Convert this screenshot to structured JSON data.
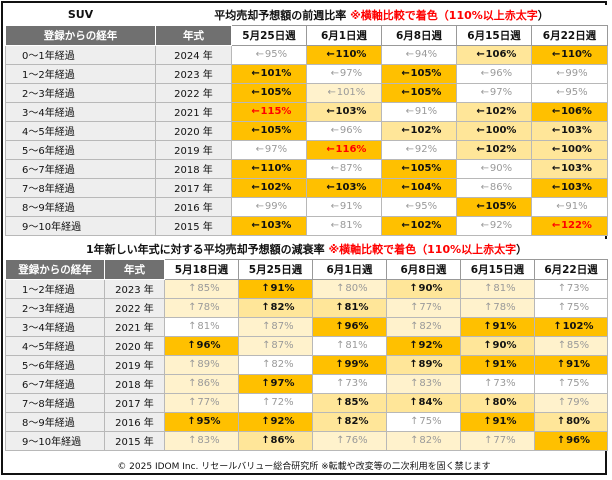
{
  "table1": {
    "corner_label": "SUV",
    "title": "平均売却予想額の前週比率",
    "note_black": "※横軸比較で着色（110%以上",
    "note_red": "赤太字",
    "note_close": "）",
    "row_header": "登録からの経年",
    "year_header": "年式",
    "dates": [
      "5月25日週",
      "6月1日週",
      "6月8日週",
      "6月15日週",
      "6月22日週"
    ],
    "rows": [
      {
        "label": "0～1年経過",
        "year": "2024 年",
        "cells": [
          {
            "arrow": "←",
            "value": "95%",
            "level": "white",
            "red": false
          },
          {
            "arrow": "←",
            "value": "110%",
            "level": "top",
            "red": false
          },
          {
            "arrow": "←",
            "value": "94%",
            "level": "white",
            "red": false
          },
          {
            "arrow": "←",
            "value": "106%",
            "level": "mid",
            "red": false
          },
          {
            "arrow": "←",
            "value": "110%",
            "level": "top",
            "red": false
          }
        ]
      },
      {
        "label": "1～2年経過",
        "year": "2023 年",
        "cells": [
          {
            "arrow": "←",
            "value": "101%",
            "level": "top",
            "red": false
          },
          {
            "arrow": "←",
            "value": "97%",
            "level": "white",
            "red": false
          },
          {
            "arrow": "←",
            "value": "105%",
            "level": "top",
            "red": false
          },
          {
            "arrow": "←",
            "value": "96%",
            "level": "white",
            "red": false
          },
          {
            "arrow": "←",
            "value": "99%",
            "level": "white",
            "red": false
          }
        ]
      },
      {
        "label": "2～3年経過",
        "year": "2022 年",
        "cells": [
          {
            "arrow": "←",
            "value": "105%",
            "level": "top",
            "red": false
          },
          {
            "arrow": "←",
            "value": "101%",
            "level": "low",
            "red": false
          },
          {
            "arrow": "←",
            "value": "105%",
            "level": "top",
            "red": false
          },
          {
            "arrow": "←",
            "value": "97%",
            "level": "white",
            "red": false
          },
          {
            "arrow": "←",
            "value": "95%",
            "level": "white",
            "red": false
          }
        ]
      },
      {
        "label": "3～4年経過",
        "year": "2021 年",
        "cells": [
          {
            "arrow": "←",
            "value": "115%",
            "level": "top",
            "red": true
          },
          {
            "arrow": "←",
            "value": "103%",
            "level": "mid",
            "red": false
          },
          {
            "arrow": "←",
            "value": "91%",
            "level": "white",
            "red": false
          },
          {
            "arrow": "←",
            "value": "102%",
            "level": "mid",
            "red": false
          },
          {
            "arrow": "←",
            "value": "106%",
            "level": "top",
            "red": false
          }
        ]
      },
      {
        "label": "4～5年経過",
        "year": "2020 年",
        "cells": [
          {
            "arrow": "←",
            "value": "105%",
            "level": "top",
            "red": false
          },
          {
            "arrow": "←",
            "value": "96%",
            "level": "white",
            "red": false
          },
          {
            "arrow": "←",
            "value": "102%",
            "level": "mid",
            "red": false
          },
          {
            "arrow": "←",
            "value": "100%",
            "level": "mid",
            "red": false
          },
          {
            "arrow": "←",
            "value": "103%",
            "level": "mid",
            "red": false
          }
        ]
      },
      {
        "label": "5～6年経過",
        "year": "2019 年",
        "cells": [
          {
            "arrow": "←",
            "value": "97%",
            "level": "white",
            "red": false
          },
          {
            "arrow": "←",
            "value": "116%",
            "level": "top",
            "red": true
          },
          {
            "arrow": "←",
            "value": "92%",
            "level": "white",
            "red": false
          },
          {
            "arrow": "←",
            "value": "102%",
            "level": "mid",
            "red": false
          },
          {
            "arrow": "←",
            "value": "100%",
            "level": "mid",
            "red": false
          }
        ]
      },
      {
        "label": "6～7年経過",
        "year": "2018 年",
        "cells": [
          {
            "arrow": "←",
            "value": "110%",
            "level": "top",
            "red": false
          },
          {
            "arrow": "←",
            "value": "87%",
            "level": "white",
            "red": false
          },
          {
            "arrow": "←",
            "value": "105%",
            "level": "top",
            "red": false
          },
          {
            "arrow": "←",
            "value": "90%",
            "level": "white",
            "red": false
          },
          {
            "arrow": "←",
            "value": "103%",
            "level": "mid",
            "red": false
          }
        ]
      },
      {
        "label": "7～8年経過",
        "year": "2017 年",
        "cells": [
          {
            "arrow": "←",
            "value": "102%",
            "level": "top",
            "red": false
          },
          {
            "arrow": "←",
            "value": "103%",
            "level": "top",
            "red": false
          },
          {
            "arrow": "←",
            "value": "104%",
            "level": "top",
            "red": false
          },
          {
            "arrow": "←",
            "value": "86%",
            "level": "white",
            "red": false
          },
          {
            "arrow": "←",
            "value": "103%",
            "level": "top",
            "red": false
          }
        ]
      },
      {
        "label": "8～9年経過",
        "year": "2016 年",
        "cells": [
          {
            "arrow": "←",
            "value": "99%",
            "level": "white",
            "red": false
          },
          {
            "arrow": "←",
            "value": "91%",
            "level": "white",
            "red": false
          },
          {
            "arrow": "←",
            "value": "95%",
            "level": "white",
            "red": false
          },
          {
            "arrow": "←",
            "value": "105%",
            "level": "top",
            "red": false
          },
          {
            "arrow": "←",
            "value": "91%",
            "level": "white",
            "red": false
          }
        ]
      },
      {
        "label": "9～10年経過",
        "year": "2015 年",
        "cells": [
          {
            "arrow": "←",
            "value": "103%",
            "level": "top",
            "red": false
          },
          {
            "arrow": "←",
            "value": "81%",
            "level": "white",
            "red": false
          },
          {
            "arrow": "←",
            "value": "102%",
            "level": "top",
            "red": false
          },
          {
            "arrow": "←",
            "value": "92%",
            "level": "white",
            "red": false
          },
          {
            "arrow": "←",
            "value": "122%",
            "level": "top",
            "red": true
          }
        ]
      }
    ]
  },
  "table2": {
    "title": "1年新しい年式に対する平均売却予想額の減衰率",
    "note_black": "※横軸比較で着色（110%以上",
    "note_red": "赤太字",
    "note_close": "）",
    "row_header": "登録からの経年",
    "year_header": "年式",
    "dates": [
      "5月18日週",
      "5月25日週",
      "6月1日週",
      "6月8日週",
      "6月15日週",
      "6月22日週"
    ],
    "rows": [
      {
        "label": "1～2年経過",
        "year": "2023 年",
        "cells": [
          {
            "arrow": "↑",
            "value": "85%",
            "level": "low",
            "red": false
          },
          {
            "arrow": "↑",
            "value": "91%",
            "level": "top",
            "red": false
          },
          {
            "arrow": "↑",
            "value": "80%",
            "level": "low",
            "red": false
          },
          {
            "arrow": "↑",
            "value": "90%",
            "level": "mid",
            "red": false
          },
          {
            "arrow": "↑",
            "value": "81%",
            "level": "low",
            "red": false
          },
          {
            "arrow": "↑",
            "value": "73%",
            "level": "white",
            "red": false
          }
        ]
      },
      {
        "label": "2～3年経過",
        "year": "2022 年",
        "cells": [
          {
            "arrow": "↑",
            "value": "78%",
            "level": "low",
            "red": false
          },
          {
            "arrow": "↑",
            "value": "82%",
            "level": "mid",
            "red": false
          },
          {
            "arrow": "↑",
            "value": "81%",
            "level": "mid",
            "red": false
          },
          {
            "arrow": "↑",
            "value": "77%",
            "level": "low",
            "red": false
          },
          {
            "arrow": "↑",
            "value": "78%",
            "level": "low",
            "red": false
          },
          {
            "arrow": "↑",
            "value": "75%",
            "level": "white",
            "red": false
          }
        ]
      },
      {
        "label": "3～4年経過",
        "year": "2021 年",
        "cells": [
          {
            "arrow": "↑",
            "value": "81%",
            "level": "white",
            "red": false
          },
          {
            "arrow": "↑",
            "value": "87%",
            "level": "low",
            "red": false
          },
          {
            "arrow": "↑",
            "value": "96%",
            "level": "top",
            "red": false
          },
          {
            "arrow": "↑",
            "value": "82%",
            "level": "low",
            "red": false
          },
          {
            "arrow": "↑",
            "value": "91%",
            "level": "top",
            "red": false
          },
          {
            "arrow": "↑",
            "value": "102%",
            "level": "top",
            "red": false
          }
        ]
      },
      {
        "label": "4～5年経過",
        "year": "2020 年",
        "cells": [
          {
            "arrow": "↑",
            "value": "96%",
            "level": "top",
            "red": false
          },
          {
            "arrow": "↑",
            "value": "87%",
            "level": "low",
            "red": false
          },
          {
            "arrow": "↑",
            "value": "81%",
            "level": "white",
            "red": false
          },
          {
            "arrow": "↑",
            "value": "92%",
            "level": "top",
            "red": false
          },
          {
            "arrow": "↑",
            "value": "90%",
            "level": "mid",
            "red": false
          },
          {
            "arrow": "↑",
            "value": "85%",
            "level": "low",
            "red": false
          }
        ]
      },
      {
        "label": "5～6年経過",
        "year": "2019 年",
        "cells": [
          {
            "arrow": "↑",
            "value": "89%",
            "level": "low",
            "red": false
          },
          {
            "arrow": "↑",
            "value": "82%",
            "level": "white",
            "red": false
          },
          {
            "arrow": "↑",
            "value": "99%",
            "level": "top",
            "red": false
          },
          {
            "arrow": "↑",
            "value": "89%",
            "level": "mid",
            "red": false
          },
          {
            "arrow": "↑",
            "value": "91%",
            "level": "top",
            "red": false
          },
          {
            "arrow": "↑",
            "value": "91%",
            "level": "top",
            "red": false
          }
        ]
      },
      {
        "label": "6～7年経過",
        "year": "2018 年",
        "cells": [
          {
            "arrow": "↑",
            "value": "86%",
            "level": "low",
            "red": false
          },
          {
            "arrow": "↑",
            "value": "97%",
            "level": "top",
            "red": false
          },
          {
            "arrow": "↑",
            "value": "73%",
            "level": "white",
            "red": false
          },
          {
            "arrow": "↑",
            "value": "83%",
            "level": "low",
            "red": false
          },
          {
            "arrow": "↑",
            "value": "73%",
            "level": "white",
            "red": false
          },
          {
            "arrow": "↑",
            "value": "75%",
            "level": "white",
            "red": false
          }
        ]
      },
      {
        "label": "7～8年経過",
        "year": "2017 年",
        "cells": [
          {
            "arrow": "↑",
            "value": "77%",
            "level": "low",
            "red": false
          },
          {
            "arrow": "↑",
            "value": "72%",
            "level": "white",
            "red": false
          },
          {
            "arrow": "↑",
            "value": "85%",
            "level": "mid",
            "red": false
          },
          {
            "arrow": "↑",
            "value": "84%",
            "level": "mid",
            "red": false
          },
          {
            "arrow": "↑",
            "value": "80%",
            "level": "mid",
            "red": false
          },
          {
            "arrow": "↑",
            "value": "79%",
            "level": "low",
            "red": false
          }
        ]
      },
      {
        "label": "8～9年経過",
        "year": "2016 年",
        "cells": [
          {
            "arrow": "↑",
            "value": "95%",
            "level": "top",
            "red": false
          },
          {
            "arrow": "↑",
            "value": "92%",
            "level": "top",
            "red": false
          },
          {
            "arrow": "↑",
            "value": "82%",
            "level": "mid",
            "red": false
          },
          {
            "arrow": "↑",
            "value": "75%",
            "level": "white",
            "red": false
          },
          {
            "arrow": "↑",
            "value": "91%",
            "level": "top",
            "red": false
          },
          {
            "arrow": "↑",
            "value": "80%",
            "level": "mid",
            "red": false
          }
        ]
      },
      {
        "label": "9～10年経過",
        "year": "2015 年",
        "cells": [
          {
            "arrow": "↑",
            "value": "83%",
            "level": "low",
            "red": false
          },
          {
            "arrow": "↑",
            "value": "86%",
            "level": "mid",
            "red": false
          },
          {
            "arrow": "↑",
            "value": "76%",
            "level": "low",
            "red": false
          },
          {
            "arrow": "↑",
            "value": "82%",
            "level": "low",
            "red": false
          },
          {
            "arrow": "↑",
            "value": "77%",
            "level": "low",
            "red": false
          },
          {
            "arrow": "↑",
            "value": "96%",
            "level": "top",
            "red": false
          }
        ]
      }
    ]
  },
  "footer": "© 2025 IDOM Inc. リセールバリュー総合研究所 ※転載や改変等の二次利用を固く禁じます",
  "colors": {
    "top": "#ffc000",
    "mid": "#ffe699",
    "low": "#fff2cc",
    "header_gray": "#707070",
    "label_bg": "#eeeeee",
    "red_text": "#ff0000"
  }
}
